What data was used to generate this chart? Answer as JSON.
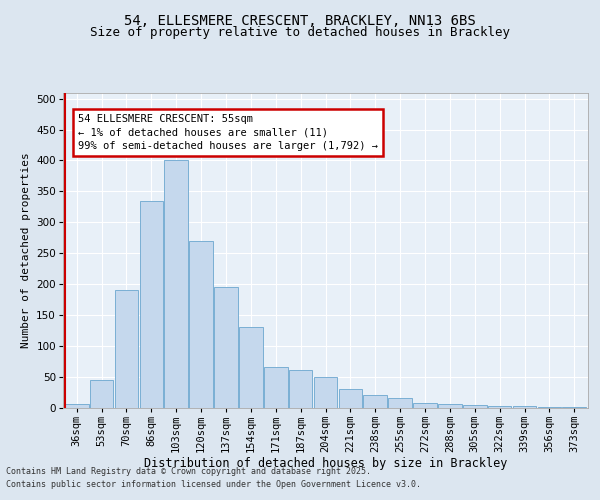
{
  "title1": "54, ELLESMERE CRESCENT, BRACKLEY, NN13 6BS",
  "title2": "Size of property relative to detached houses in Brackley",
  "xlabel": "Distribution of detached houses by size in Brackley",
  "ylabel": "Number of detached properties",
  "categories": [
    "36sqm",
    "53sqm",
    "70sqm",
    "86sqm",
    "103sqm",
    "120sqm",
    "137sqm",
    "154sqm",
    "171sqm",
    "187sqm",
    "204sqm",
    "221sqm",
    "238sqm",
    "255sqm",
    "272sqm",
    "288sqm",
    "305sqm",
    "322sqm",
    "339sqm",
    "356sqm",
    "373sqm"
  ],
  "values": [
    5,
    45,
    190,
    335,
    400,
    270,
    195,
    130,
    65,
    60,
    50,
    30,
    20,
    15,
    8,
    5,
    4,
    2,
    2,
    1,
    1
  ],
  "bar_color": "#c5d8ed",
  "bar_edge_color": "#7aafd4",
  "annotation_text": "54 ELLESMERE CRESCENT: 55sqm\n← 1% of detached houses are smaller (11)\n99% of semi-detached houses are larger (1,792) →",
  "annotation_box_color": "white",
  "annotation_box_edge_color": "#cc0000",
  "vline_color": "#cc0000",
  "ylim": [
    0,
    510
  ],
  "yticks": [
    0,
    50,
    100,
    150,
    200,
    250,
    300,
    350,
    400,
    450,
    500
  ],
  "footer_line1": "Contains HM Land Registry data © Crown copyright and database right 2025.",
  "footer_line2": "Contains public sector information licensed under the Open Government Licence v3.0.",
  "bg_color": "#dce6f0",
  "plot_bg_color": "#e8f0f8",
  "title1_fontsize": 10,
  "title2_fontsize": 9,
  "xlabel_fontsize": 8.5,
  "ylabel_fontsize": 8,
  "tick_fontsize": 7.5,
  "footer_fontsize": 6,
  "grid_color": "#ffffff"
}
